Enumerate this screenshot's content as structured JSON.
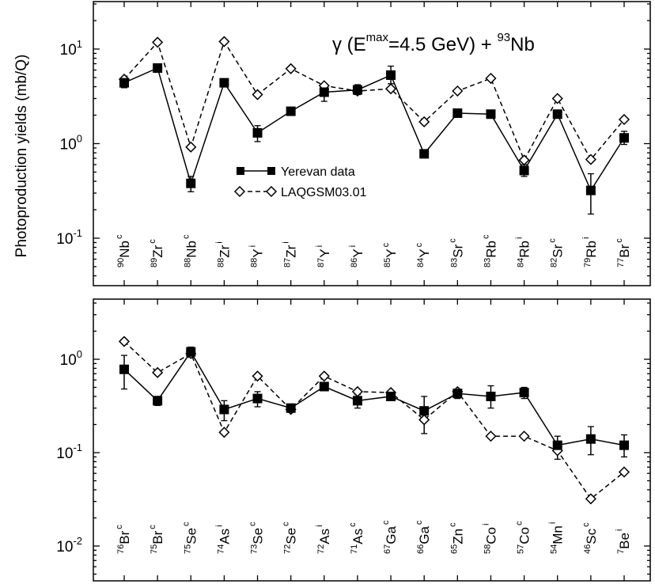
{
  "ylabel": "Photoproduction yields (mb/Q)",
  "reaction": {
    "gamma": "γ",
    "open": " (E",
    "sup": "max",
    "energy": "=4.5 GeV) + ",
    "target_sup": "93",
    "target": "Nb"
  },
  "legend": {
    "yerevan": "Yerevan data",
    "laqgsm": "LAQGSM03.01"
  },
  "chart_data": [
    {
      "type": "line",
      "yscale": "log",
      "ylim": [
        0.06,
        30
      ],
      "ytick_labels": [
        {
          "mant": "10",
          "exp": "1",
          "value": 10
        },
        {
          "mant": "10",
          "exp": "0",
          "value": 1
        },
        {
          "mant": "10",
          "exp": "-1",
          "value": 0.1
        }
      ],
      "categories": [
        {
          "mass": "90",
          "el": "Nb",
          "type": "c"
        },
        {
          "mass": "89",
          "el": "Zr",
          "type": "c"
        },
        {
          "mass": "88",
          "el": "Nb",
          "type": "c"
        },
        {
          "mass": "88",
          "el": "Zr",
          "type": "i"
        },
        {
          "mass": "88",
          "el": "Y",
          "type": "i"
        },
        {
          "mass": "87",
          "el": "Zr",
          "type": "i"
        },
        {
          "mass": "87",
          "el": "Y",
          "type": "i"
        },
        {
          "mass": "86",
          "el": "Y",
          "type": "i"
        },
        {
          "mass": "85",
          "el": "Y",
          "type": "c"
        },
        {
          "mass": "84",
          "el": "Y",
          "type": "c"
        },
        {
          "mass": "83",
          "el": "Sr",
          "type": "c"
        },
        {
          "mass": "83",
          "el": "Rb",
          "type": "c"
        },
        {
          "mass": "84",
          "el": "Rb",
          "type": "i"
        },
        {
          "mass": "82",
          "el": "Sr",
          "type": "c"
        },
        {
          "mass": "79",
          "el": "Rb",
          "type": "i"
        },
        {
          "mass": "77",
          "el": "Br",
          "type": "c"
        }
      ],
      "series": [
        {
          "name": "Yerevan data",
          "values": [
            4.4,
            6.3,
            0.38,
            4.4,
            1.3,
            2.2,
            3.5,
            3.7,
            5.3,
            0.78,
            2.1,
            2.05,
            0.52,
            2.05,
            0.32,
            1.15
          ],
          "err_low": [
            3.9,
            6.3,
            0.31,
            4.4,
            1.05,
            2.2,
            2.8,
            3.3,
            4.3,
            0.78,
            2.1,
            2.05,
            0.45,
            2.05,
            0.18,
            0.98
          ],
          "err_high": [
            5.0,
            6.3,
            0.45,
            4.4,
            1.55,
            2.2,
            4.3,
            4.2,
            6.6,
            0.78,
            2.1,
            2.05,
            0.6,
            2.05,
            0.48,
            1.35
          ]
        },
        {
          "name": "LAQGSM03.01",
          "values": [
            4.8,
            11.8,
            0.92,
            12.0,
            3.3,
            6.2,
            4.1,
            3.6,
            3.8,
            1.7,
            3.6,
            4.9,
            0.67,
            3.0,
            0.68,
            1.8
          ]
        }
      ]
    },
    {
      "type": "line",
      "yscale": "log",
      "ylim": [
        0.005,
        4
      ],
      "ytick_labels": [
        {
          "mant": "10",
          "exp": "0",
          "value": 1
        },
        {
          "mant": "10",
          "exp": "-1",
          "value": 0.1
        },
        {
          "mant": "10",
          "exp": "-2",
          "value": 0.01
        }
      ],
      "categories": [
        {
          "mass": "76",
          "el": "Br",
          "type": "c"
        },
        {
          "mass": "75",
          "el": "Br",
          "type": "c"
        },
        {
          "mass": "75",
          "el": "Se",
          "type": "c"
        },
        {
          "mass": "74",
          "el": "As",
          "type": "i"
        },
        {
          "mass": "73",
          "el": "Se",
          "type": "c"
        },
        {
          "mass": "72",
          "el": "Se",
          "type": "c"
        },
        {
          "mass": "72",
          "el": "As",
          "type": "i"
        },
        {
          "mass": "71",
          "el": "As",
          "type": "c"
        },
        {
          "mass": "67",
          "el": "Ga",
          "type": "c"
        },
        {
          "mass": "66",
          "el": "Ga",
          "type": "c"
        },
        {
          "mass": "65",
          "el": "Zn",
          "type": "c"
        },
        {
          "mass": "58",
          "el": "Co",
          "type": "i"
        },
        {
          "mass": "57",
          "el": "Co",
          "type": "c"
        },
        {
          "mass": "54",
          "el": "Mn",
          "type": "i"
        },
        {
          "mass": "46",
          "el": "Sc",
          "type": "c"
        },
        {
          "mass": "7",
          "el": "Be",
          "type": "i"
        }
      ],
      "series": [
        {
          "name": "Yerevan data",
          "values": [
            0.78,
            0.36,
            1.2,
            0.29,
            0.38,
            0.3,
            0.51,
            0.36,
            0.4,
            0.28,
            0.43,
            0.4,
            0.44,
            0.12,
            0.14,
            0.12
          ],
          "err_low": [
            0.48,
            0.32,
            1.05,
            0.22,
            0.31,
            0.27,
            0.46,
            0.3,
            0.36,
            0.16,
            0.38,
            0.3,
            0.38,
            0.085,
            0.095,
            0.09
          ],
          "err_high": [
            1.1,
            0.4,
            1.35,
            0.36,
            0.45,
            0.33,
            0.56,
            0.42,
            0.44,
            0.4,
            0.48,
            0.52,
            0.5,
            0.15,
            0.19,
            0.155
          ]
        },
        {
          "name": "LAQGSM03.01",
          "values": [
            1.55,
            0.72,
            1.15,
            0.165,
            0.66,
            0.29,
            0.66,
            0.45,
            0.44,
            0.225,
            0.45,
            0.15,
            0.15,
            0.105,
            0.032,
            0.062
          ]
        }
      ]
    }
  ]
}
